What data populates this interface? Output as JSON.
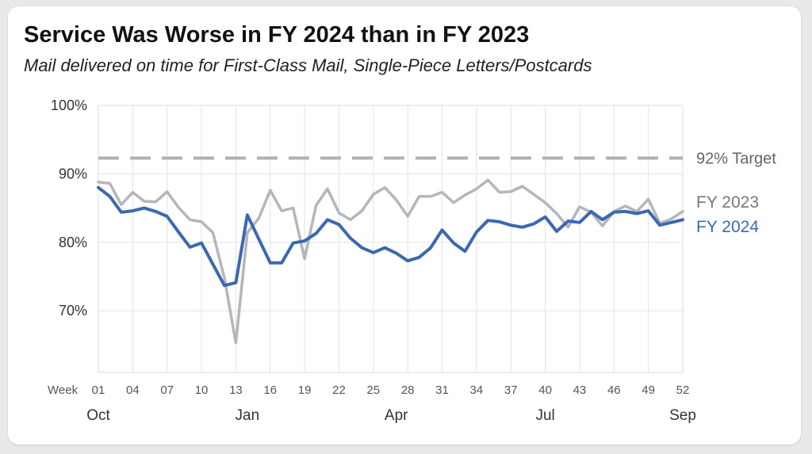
{
  "title": "Service Was Worse in FY 2024 than in FY 2023",
  "subtitle": "Mail delivered on time for First-Class Mail, Single-Piece Letters/Postcards",
  "chart_data": {
    "type": "line",
    "x_prefix_label": "Week",
    "x": [
      1,
      2,
      3,
      4,
      5,
      6,
      7,
      8,
      9,
      10,
      11,
      12,
      13,
      14,
      15,
      16,
      17,
      18,
      19,
      20,
      21,
      22,
      23,
      24,
      25,
      26,
      27,
      28,
      29,
      30,
      31,
      32,
      33,
      34,
      35,
      36,
      37,
      38,
      39,
      40,
      41,
      42,
      43,
      44,
      45,
      46,
      47,
      48,
      49,
      50,
      51,
      52
    ],
    "x_tick_labels": [
      "01",
      "04",
      "07",
      "10",
      "13",
      "16",
      "19",
      "22",
      "25",
      "28",
      "31",
      "34",
      "37",
      "40",
      "43",
      "46",
      "49",
      "52"
    ],
    "x_tick_values": [
      1,
      4,
      7,
      10,
      13,
      16,
      19,
      22,
      25,
      28,
      31,
      34,
      37,
      40,
      43,
      46,
      49,
      52
    ],
    "month_labels": [
      {
        "text": "Oct",
        "week": 1
      },
      {
        "text": "Jan",
        "week": 14
      },
      {
        "text": "Apr",
        "week": 27
      },
      {
        "text": "Jul",
        "week": 40
      },
      {
        "text": "Sep",
        "week": 52
      }
    ],
    "y_tick_labels": [
      "70%",
      "80%",
      "90%",
      "100%"
    ],
    "y_tick_values": [
      70,
      80,
      90,
      100
    ],
    "ylim": [
      61,
      100
    ],
    "grid": true,
    "target": {
      "value": 92.3,
      "label": "92% Target"
    },
    "series": [
      {
        "name": "FY 2023",
        "color": "#b3b6bb",
        "values": [
          88.8,
          88.6,
          85.5,
          87.3,
          86.0,
          85.9,
          87.4,
          85.1,
          83.3,
          83.0,
          81.4,
          74.8,
          65.3,
          81.4,
          83.5,
          87.6,
          84.6,
          85.0,
          77.6,
          85.4,
          87.8,
          84.3,
          83.3,
          84.6,
          87.0,
          88.0,
          86.2,
          83.8,
          86.7,
          86.7,
          87.3,
          85.8,
          86.9,
          87.8,
          89.1,
          87.3,
          87.4,
          88.2,
          87.0,
          85.8,
          84.2,
          82.2,
          85.2,
          84.4,
          82.4,
          84.5,
          85.3,
          84.5,
          86.3,
          82.8,
          83.4,
          84.5
        ]
      },
      {
        "name": "FY 2024",
        "color": "#3a68b3",
        "values": [
          88.0,
          86.7,
          84.4,
          84.6,
          85.0,
          84.5,
          83.8,
          81.5,
          79.3,
          79.9,
          76.8,
          73.7,
          74.1,
          84.0,
          80.5,
          77.0,
          77.0,
          79.9,
          80.2,
          81.3,
          83.3,
          82.6,
          80.6,
          79.2,
          78.5,
          79.2,
          78.4,
          77.3,
          77.8,
          79.2,
          81.8,
          79.9,
          78.7,
          81.5,
          83.2,
          83.0,
          82.5,
          82.2,
          82.7,
          83.7,
          81.6,
          83.1,
          82.9,
          84.5,
          83.3,
          84.4,
          84.5,
          84.2,
          84.6,
          82.5,
          82.9,
          83.3
        ]
      }
    ]
  }
}
